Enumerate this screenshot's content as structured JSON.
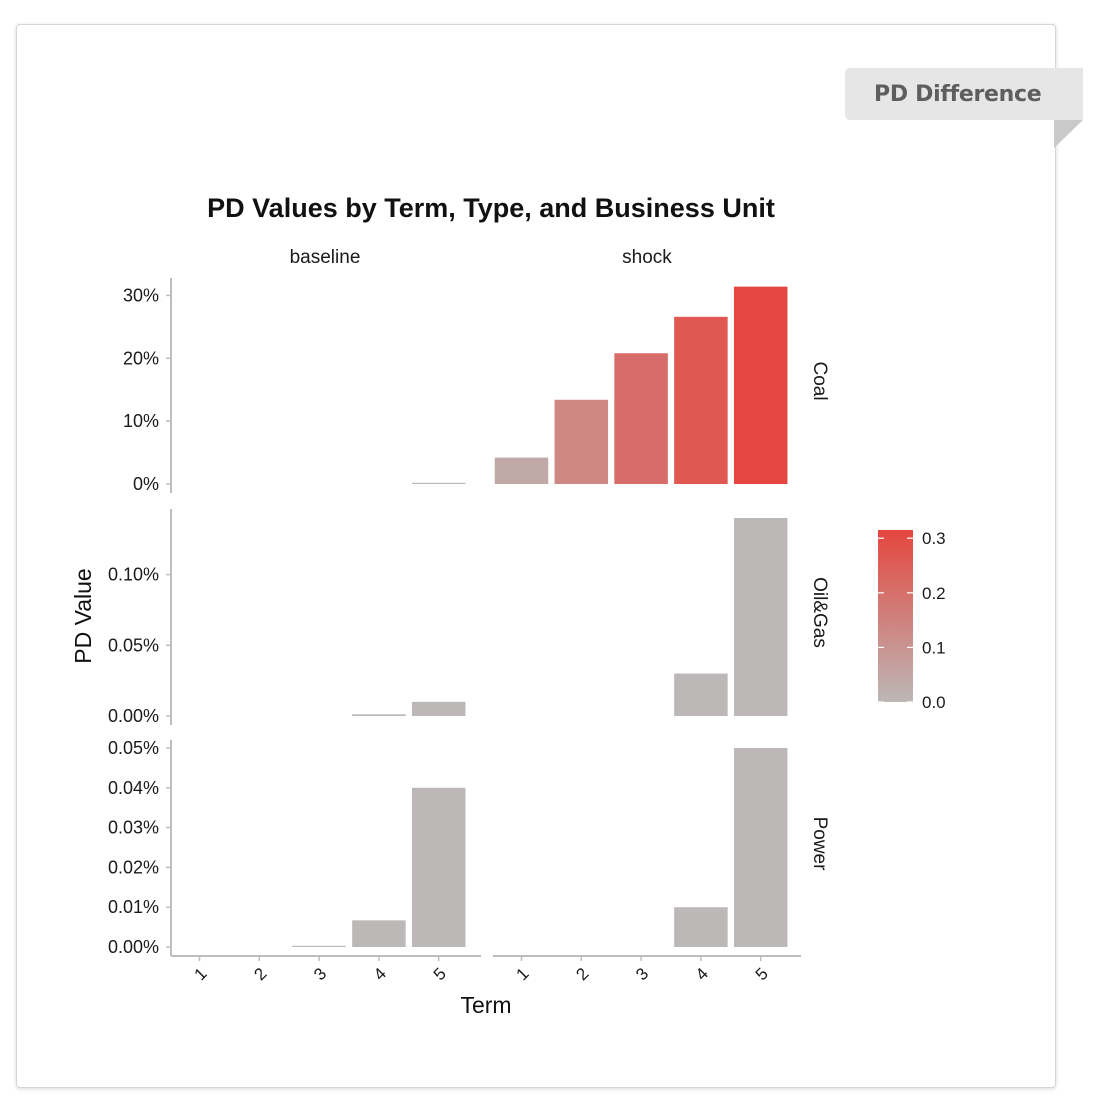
{
  "tab": {
    "label": "PD Difference"
  },
  "colors": {
    "low": "#bcb8b7",
    "high": "#e5463f",
    "axis": "#bdbdbd",
    "text": "#1a1a1a"
  },
  "chart_data": {
    "type": "bar",
    "title": "PD Values by Term, Type, and Business Unit",
    "xlabel": "Term",
    "ylabel": "PD Value",
    "categories": [
      "1",
      "2",
      "3",
      "4",
      "5"
    ],
    "columns": [
      "baseline",
      "shock"
    ],
    "grid": false,
    "legend": {
      "position": "right",
      "ticks": [
        0.0,
        0.1,
        0.2,
        0.3
      ],
      "tick_labels": [
        "0.0",
        "0.1",
        "0.2",
        "0.3"
      ],
      "range": [
        0,
        0.315
      ]
    },
    "rows": [
      {
        "name": "Coal",
        "ylim": [
          0,
          0.315
        ],
        "ticks": [
          0,
          0.1,
          0.2,
          0.3
        ],
        "tick_labels": [
          "0%",
          "10%",
          "20%",
          "30%"
        ],
        "series": [
          {
            "name": "baseline",
            "values": [
              0,
              0,
              0,
              0,
              0.0003
            ],
            "fill": [
              0,
              0,
              0,
              0,
              0
            ]
          },
          {
            "name": "shock",
            "values": [
              0.042,
              0.134,
              0.208,
              0.266,
              0.314
            ],
            "fill": [
              0.042,
              0.134,
              0.208,
              0.266,
              0.314
            ]
          }
        ]
      },
      {
        "name": "Oil&Gas",
        "ylim": [
          0,
          0.0014
        ],
        "ticks": [
          0,
          0.0005,
          0.001
        ],
        "tick_labels": [
          "0.00%",
          "0.05%",
          "0.10%"
        ],
        "series": [
          {
            "name": "baseline",
            "values": [
              0,
              0,
              0,
              1.2e-05,
              0.0001
            ],
            "fill": [
              0,
              0,
              0,
              0,
              0
            ]
          },
          {
            "name": "shock",
            "values": [
              0,
              0,
              0,
              0.0003,
              0.0014
            ],
            "fill": [
              0,
              0,
              0,
              0,
              0
            ]
          }
        ]
      },
      {
        "name": "Power",
        "ylim": [
          0,
          0.0005
        ],
        "ticks": [
          0,
          0.0001,
          0.0002,
          0.0003,
          0.0004,
          0.0005
        ],
        "tick_labels": [
          "0.00%",
          "0.01%",
          "0.02%",
          "0.03%",
          "0.04%",
          "0.05%"
        ],
        "series": [
          {
            "name": "baseline",
            "values": [
              0,
              0,
              3e-06,
              6.7e-05,
              0.0004
            ],
            "fill": [
              0,
              0,
              0,
              0,
              0
            ]
          },
          {
            "name": "shock",
            "values": [
              0,
              0,
              0,
              0.0001,
              0.0005
            ],
            "fill": [
              0,
              0,
              0,
              0,
              0
            ]
          }
        ]
      }
    ]
  }
}
